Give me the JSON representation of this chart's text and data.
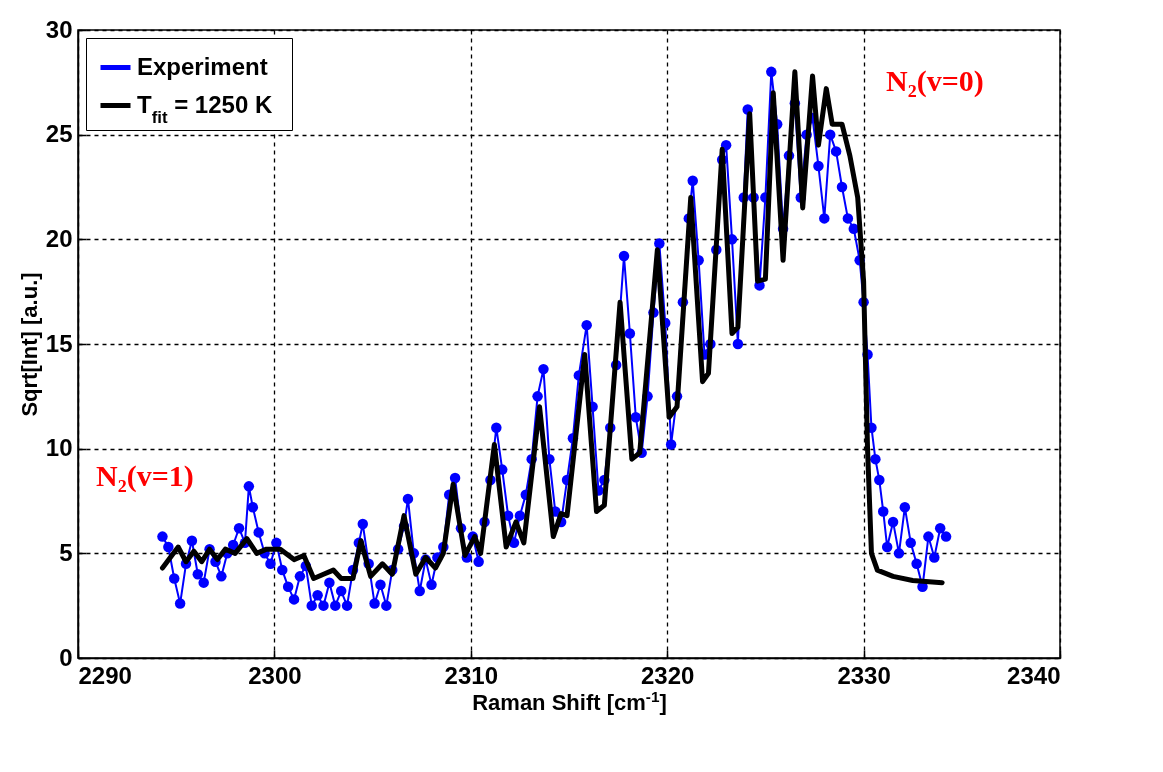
{
  "chart_data": {
    "type": "line",
    "xlabel": "Raman Shift [cm$^{-1}$]",
    "ylabel": "Sqrt[Int] [a.u.]",
    "xlim": [
      2290,
      2340
    ],
    "xticks": [
      2290,
      2300,
      2310,
      2320,
      2330,
      2340
    ],
    "ylim": [
      0,
      30
    ],
    "yticks": [
      0,
      5,
      10,
      15,
      20,
      25,
      30
    ],
    "grid": true,
    "legend": "top left",
    "line_style": "solid",
    "annotations": [
      "N₂(v=1)",
      "N₂(v=0)"
    ],
    "series": [
      {
        "name": "Experiment",
        "color": "#0000ff",
        "marker": "circle",
        "x": [
          2294.3,
          2294.6,
          2294.9,
          2295.2,
          2295.5,
          2295.8,
          2296.1,
          2296.4,
          2296.7,
          2297.0,
          2297.3,
          2297.6,
          2297.9,
          2298.2,
          2298.5,
          2298.7,
          2298.9,
          2299.2,
          2299.5,
          2299.8,
          2300.1,
          2300.4,
          2300.7,
          2301.0,
          2301.3,
          2301.6,
          2301.9,
          2302.2,
          2302.5,
          2302.8,
          2303.1,
          2303.4,
          2303.7,
          2304.0,
          2304.3,
          2304.5,
          2304.8,
          2305.1,
          2305.4,
          2305.7,
          2306.0,
          2306.3,
          2306.6,
          2306.8,
          2307.1,
          2307.4,
          2307.7,
          2308.0,
          2308.3,
          2308.6,
          2308.9,
          2309.2,
          2309.5,
          2309.8,
          2310.1,
          2310.4,
          2310.7,
          2311.0,
          2311.3,
          2311.6,
          2311.9,
          2312.2,
          2312.5,
          2312.8,
          2313.1,
          2313.4,
          2313.7,
          2314.0,
          2314.3,
          2314.6,
          2314.9,
          2315.2,
          2315.5,
          2315.9,
          2316.2,
          2316.5,
          2316.8,
          2317.1,
          2317.4,
          2317.8,
          2318.1,
          2318.4,
          2318.7,
          2319.0,
          2319.3,
          2319.6,
          2319.9,
          2320.2,
          2320.5,
          2320.8,
          2321.1,
          2321.3,
          2321.6,
          2321.9,
          2322.2,
          2322.5,
          2322.8,
          2323.0,
          2323.3,
          2323.6,
          2323.9,
          2324.1,
          2324.4,
          2324.7,
          2325.0,
          2325.3,
          2325.6,
          2325.9,
          2326.2,
          2326.5,
          2326.8,
          2327.1,
          2327.4,
          2327.7,
          2328.0,
          2328.3,
          2328.6,
          2328.9,
          2329.2,
          2329.5,
          2329.8,
          2330.0,
          2330.2,
          2330.4,
          2330.6,
          2330.8,
          2331.0,
          2331.2,
          2331.5,
          2331.8,
          2332.1,
          2332.4,
          2332.7,
          2333.0,
          2333.3,
          2333.6,
          2333.9,
          2334.2
        ],
        "values": [
          5.8,
          5.3,
          3.8,
          2.6,
          4.5,
          5.6,
          4.0,
          3.6,
          5.2,
          4.6,
          3.9,
          5.0,
          5.4,
          6.2,
          5.5,
          8.2,
          7.2,
          6.0,
          5.0,
          4.5,
          5.5,
          4.2,
          3.4,
          2.8,
          3.9,
          4.4,
          2.5,
          3.0,
          2.5,
          3.6,
          2.5,
          3.2,
          2.5,
          4.2,
          5.5,
          6.4,
          4.5,
          2.6,
          3.5,
          2.5,
          4.2,
          5.2,
          6.3,
          7.6,
          5.0,
          3.2,
          4.7,
          3.5,
          4.8,
          5.3,
          7.8,
          8.6,
          6.2,
          4.8,
          5.8,
          4.6,
          6.5,
          8.5,
          11.0,
          9.0,
          6.8,
          5.5,
          6.8,
          7.8,
          9.5,
          12.5,
          13.8,
          9.5,
          7.0,
          6.5,
          8.5,
          10.5,
          13.5,
          15.9,
          12.0,
          8.0,
          8.5,
          11.0,
          14.0,
          19.2,
          15.5,
          11.5,
          9.8,
          12.5,
          16.5,
          19.8,
          16.0,
          10.2,
          12.5,
          17.0,
          21.0,
          22.8,
          19.0,
          14.5,
          15.0,
          19.5,
          23.8,
          24.5,
          20.0,
          15.0,
          22.0,
          26.2,
          22.0,
          17.8,
          22.0,
          28.0,
          25.5,
          20.5,
          24.0,
          26.5,
          22.0,
          25.0,
          25.8,
          23.5,
          21.0,
          25.0,
          24.2,
          22.5,
          21.0,
          20.5,
          19.0,
          17.0,
          14.5,
          11.0,
          9.5,
          8.5,
          7.0,
          5.3,
          6.5,
          5.0,
          7.2,
          5.5,
          4.5,
          3.4,
          5.8,
          4.8,
          6.2,
          5.8
        ]
      },
      {
        "name": "T$_{fit}$ = 1250 K",
        "color": "#000000",
        "marker": "none",
        "x": [
          2294.3,
          2294.7,
          2295.1,
          2295.5,
          2295.9,
          2296.3,
          2296.7,
          2297.1,
          2297.5,
          2298.0,
          2298.6,
          2299.1,
          2299.6,
          2300.3,
          2301.0,
          2301.5,
          2302.0,
          2302.5,
          2303.0,
          2303.4,
          2304.0,
          2304.4,
          2304.9,
          2305.5,
          2306.0,
          2306.6,
          2307.2,
          2307.7,
          2308.2,
          2308.6,
          2309.1,
          2309.7,
          2310.2,
          2310.5,
          2311.2,
          2311.8,
          2312.3,
          2312.7,
          2313.5,
          2314.2,
          2314.6,
          2314.9,
          2315.8,
          2316.4,
          2316.8,
          2317.6,
          2318.2,
          2318.6,
          2319.5,
          2320.1,
          2320.5,
          2321.2,
          2321.8,
          2322.1,
          2322.8,
          2323.3,
          2323.6,
          2324.2,
          2324.6,
          2325.0,
          2325.4,
          2325.9,
          2326.5,
          2326.9,
          2327.4,
          2327.7,
          2328.1,
          2328.4,
          2328.9,
          2329.3,
          2329.7,
          2330.0,
          2330.2,
          2330.4,
          2330.7,
          2331.5,
          2332.5,
          2334.0
        ],
        "values": [
          4.3,
          4.8,
          5.3,
          4.6,
          5.1,
          4.6,
          5.2,
          4.7,
          5.2,
          5.0,
          5.7,
          5.0,
          5.2,
          5.2,
          4.7,
          4.9,
          3.8,
          4.0,
          4.2,
          3.8,
          3.8,
          5.6,
          3.9,
          4.5,
          4.0,
          6.8,
          4.0,
          4.8,
          4.3,
          5.0,
          8.3,
          4.9,
          5.8,
          5.0,
          10.2,
          5.3,
          6.5,
          5.5,
          12.0,
          5.8,
          6.9,
          6.8,
          14.5,
          7.0,
          7.3,
          17.0,
          9.5,
          9.8,
          19.5,
          11.5,
          12.0,
          22.0,
          13.2,
          13.6,
          24.3,
          15.5,
          15.8,
          26.0,
          18.0,
          18.1,
          27.0,
          19.0,
          28.0,
          21.5,
          27.8,
          24.5,
          27.2,
          25.5,
          25.5,
          24.0,
          22.0,
          18.0,
          10.0,
          5.0,
          4.2,
          3.9,
          3.7,
          3.6
        ]
      }
    ]
  }
}
